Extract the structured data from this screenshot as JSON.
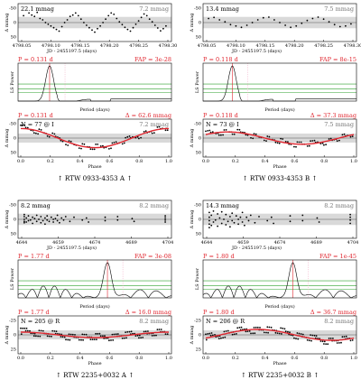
{
  "colors": {
    "red": "#e0262f",
    "gray": "#777777",
    "band": "#d9d9d9",
    "green": "#2ca02c",
    "pink": "#f0a6c0",
    "black": "#000000"
  },
  "chart_data": [
    {
      "id": "A1",
      "type": "scatter",
      "lc": {
        "rms": "22.1 mmag",
        "rms_right": "7.2 mmag",
        "xlabel": "JD - 2455197.5 (days)",
        "ylabel": "Δ mmag",
        "xticks": [
          "4798.05",
          "4798.10",
          "4798.15",
          "4798.20",
          "4798.25",
          "4798.30"
        ],
        "yticks": [
          "-50",
          "0",
          "50"
        ],
        "xlim": [
          4798.03,
          4798.31
        ],
        "ylim": [
          50,
          -50
        ],
        "points": [
          [
            4798.04,
            -20
          ],
          [
            4798.05,
            -28
          ],
          [
            4798.055,
            -22
          ],
          [
            4798.06,
            -18
          ],
          [
            4798.065,
            -30
          ],
          [
            4798.07,
            -12
          ],
          [
            4798.075,
            -8
          ],
          [
            4798.08,
            0
          ],
          [
            4798.085,
            5
          ],
          [
            4798.09,
            10
          ],
          [
            4798.095,
            15
          ],
          [
            4798.1,
            20
          ],
          [
            4798.105,
            25
          ],
          [
            4798.11,
            12
          ],
          [
            4798.115,
            0
          ],
          [
            4798.12,
            -8
          ],
          [
            4798.125,
            -18
          ],
          [
            4798.13,
            -22
          ],
          [
            4798.135,
            -28
          ],
          [
            4798.14,
            -20
          ],
          [
            4798.145,
            -10
          ],
          [
            4798.15,
            0
          ],
          [
            4798.155,
            8
          ],
          [
            4798.16,
            15
          ],
          [
            4798.165,
            22
          ],
          [
            4798.17,
            28
          ],
          [
            4798.175,
            18
          ],
          [
            4798.18,
            10
          ],
          [
            4798.185,
            0
          ],
          [
            4798.19,
            -10
          ],
          [
            4798.195,
            -20
          ],
          [
            4798.2,
            -28
          ],
          [
            4798.205,
            -24
          ],
          [
            4798.21,
            -12
          ],
          [
            4798.215,
            -2
          ],
          [
            4798.22,
            6
          ],
          [
            4798.225,
            14
          ],
          [
            4798.23,
            20
          ],
          [
            4798.235,
            25
          ],
          [
            4798.24,
            15
          ],
          [
            4798.245,
            5
          ],
          [
            4798.25,
            -5
          ],
          [
            4798.255,
            -15
          ],
          [
            4798.26,
            -25
          ],
          [
            4798.265,
            -20
          ],
          [
            4798.27,
            -10
          ],
          [
            4798.275,
            -2
          ],
          [
            4798.28,
            8
          ],
          [
            4798.285,
            16
          ],
          [
            4798.29,
            24
          ],
          [
            4798.295,
            18
          ],
          [
            4798.3,
            10
          ]
        ]
      },
      "ls": {
        "P": "P = 0.131 d",
        "FAP": "FAP = 3e-28",
        "xlabel": "Period (days)",
        "ylabel": "LS Power",
        "peak": 0.131
      },
      "phase": {
        "P": "P = 0.131 d",
        "amp": "Δ = 62.6 mmag",
        "N": "N = 77 @ I",
        "rms_right": "7.2 mmag",
        "xlabel": "Phase",
        "ylabel": "Δ mmag",
        "amplitude": 28,
        "phase0": 0.0,
        "xticks": [
          "0.0",
          "0.2",
          "0.4",
          "0.6",
          "0.8",
          "1.0"
        ],
        "yticks": [
          "-50",
          "0",
          "50"
        ]
      },
      "caption": "↑ RTW 0933-4353 A ↑"
    },
    {
      "id": "B1",
      "type": "scatter",
      "lc": {
        "rms": "13.4 mmag",
        "rms_right": "7.5 mmag",
        "xlabel": "JD - 2455197.5 (days)",
        "ylabel": "Δ mmag",
        "xticks": [
          "4798.05",
          "4798.10",
          "4798.15",
          "4798.20",
          "4798.25",
          "4798.30"
        ],
        "yticks": [
          "-50",
          "0",
          "50"
        ],
        "xlim": [
          4798.03,
          4798.31
        ],
        "ylim": [
          50,
          -50
        ],
        "points": [
          [
            4798.04,
            -12
          ],
          [
            4798.05,
            -15
          ],
          [
            4798.06,
            -8
          ],
          [
            4798.07,
            -2
          ],
          [
            4798.08,
            6
          ],
          [
            4798.09,
            10
          ],
          [
            4798.1,
            14
          ],
          [
            4798.11,
            8
          ],
          [
            4798.12,
            0
          ],
          [
            4798.13,
            -8
          ],
          [
            4798.14,
            -14
          ],
          [
            4798.15,
            -16
          ],
          [
            4798.16,
            -8
          ],
          [
            4798.17,
            0
          ],
          [
            4798.18,
            8
          ],
          [
            4798.19,
            14
          ],
          [
            4798.2,
            10
          ],
          [
            4798.21,
            2
          ],
          [
            4798.22,
            -6
          ],
          [
            4798.23,
            -12
          ],
          [
            4798.24,
            -16
          ],
          [
            4798.25,
            -10
          ],
          [
            4798.26,
            -2
          ],
          [
            4798.27,
            6
          ],
          [
            4798.28,
            12
          ],
          [
            4798.29,
            10
          ],
          [
            4798.3,
            4
          ]
        ]
      },
      "ls": {
        "P": "P = 0.118 d",
        "FAP": "FAP = 8e-15",
        "xlabel": "Period (days)",
        "ylabel": "LS Power",
        "peak": 0.118
      },
      "phase": {
        "P": "P = 0.118 d",
        "amp": "Δ = 37.3 mmag",
        "N": "N = 73 @ I",
        "rms_right": "7.5 mmag",
        "xlabel": "Phase",
        "ylabel": "Δ mmag",
        "amplitude": 18,
        "phase0": 0.15,
        "xticks": [
          "0.0",
          "0.2",
          "0.4",
          "0.6",
          "0.8",
          "1.0"
        ],
        "yticks": [
          "-50",
          "0",
          "50"
        ]
      },
      "caption": "↑ RTW 0933-4353 B ↑"
    },
    {
      "id": "A2",
      "type": "scatter",
      "lc": {
        "rms": "8.2 mmag",
        "rms_right": "8.2 mmag",
        "xlabel": "JD - 2455197.5 (days)",
        "ylabel": "Δ mmag",
        "xticks": [
          "4644",
          "4659",
          "4674",
          "4689",
          "4704"
        ],
        "yticks": [
          "-50",
          "0",
          "50"
        ],
        "xlim": [
          4642,
          4716
        ],
        "ylim": [
          50,
          -50
        ],
        "points": [
          [
            4645,
            -8
          ],
          [
            4645,
            6
          ],
          [
            4645,
            -14
          ],
          [
            4645,
            10
          ],
          [
            4645,
            0
          ],
          [
            4646,
            -4
          ],
          [
            4646,
            8
          ],
          [
            4647,
            -10
          ],
          [
            4647,
            4
          ],
          [
            4648,
            2
          ],
          [
            4649,
            -6
          ],
          [
            4649,
            12
          ],
          [
            4650,
            -2
          ],
          [
            4651,
            6
          ],
          [
            4651,
            -12
          ],
          [
            4652,
            0
          ],
          [
            4653,
            -8
          ],
          [
            4653,
            10
          ],
          [
            4654,
            4
          ],
          [
            4655,
            -4
          ],
          [
            4655,
            14
          ],
          [
            4656,
            -10
          ],
          [
            4656,
            2
          ],
          [
            4657,
            6
          ],
          [
            4658,
            -6
          ],
          [
            4659,
            0
          ],
          [
            4659,
            8
          ],
          [
            4660,
            -2
          ],
          [
            4661,
            4
          ],
          [
            4661,
            -12
          ],
          [
            4662,
            10
          ],
          [
            4663,
            -4
          ],
          [
            4664,
            2
          ],
          [
            4665,
            -8
          ],
          [
            4667,
            6
          ],
          [
            4669,
            -6
          ],
          [
            4673,
            2
          ],
          [
            4675,
            -4
          ],
          [
            4676,
            8
          ],
          [
            4684,
            -6
          ],
          [
            4684,
            4
          ],
          [
            4690,
            2
          ],
          [
            4690,
            -8
          ],
          [
            4697,
            -2
          ],
          [
            4698,
            6
          ],
          [
            4713,
            -4
          ],
          [
            4713,
            8
          ],
          [
            4713,
            -10
          ],
          [
            4713,
            2
          ]
        ]
      },
      "ls": {
        "P": "P = 1.77 d",
        "FAP": "FAP = 3e-08",
        "xlabel": "Period (days)",
        "ylabel": "LS Power",
        "peak": 1.77
      },
      "phase": {
        "P": "P = 1.77 d",
        "amp": "Δ = 16.0 mmag",
        "N": "N = 205 @ R",
        "rms_right": "8.2 mmag",
        "xlabel": "Phase",
        "ylabel": "Δ mmag",
        "amplitude": 8,
        "phase0": 0.0,
        "xticks": [
          "0.0",
          "0.2",
          "0.4",
          "0.6",
          "0.8",
          "1.0"
        ],
        "yticks": [
          "-25",
          "0",
          "25"
        ]
      },
      "caption": "↑ RTW 2235+0032 A ↑"
    },
    {
      "id": "B2",
      "type": "scatter",
      "lc": {
        "rms": "14.3 mmag",
        "rms_right": "8.2 mmag",
        "xlabel": "JD - 2455197.5 (days)",
        "ylabel": "Δ mmag",
        "xticks": [
          "4644",
          "4659",
          "4674",
          "4689",
          "4704"
        ],
        "yticks": [
          "-50",
          "0",
          "50"
        ],
        "xlim": [
          4642,
          4716
        ],
        "ylim": [
          50,
          -50
        ],
        "points": [
          [
            4645,
            -20
          ],
          [
            4645,
            14
          ],
          [
            4645,
            -6
          ],
          [
            4645,
            24
          ],
          [
            4645,
            4
          ],
          [
            4646,
            -12
          ],
          [
            4646,
            18
          ],
          [
            4647,
            -24
          ],
          [
            4647,
            8
          ],
          [
            4648,
            2
          ],
          [
            4649,
            -16
          ],
          [
            4649,
            20
          ],
          [
            4650,
            -4
          ],
          [
            4651,
            12
          ],
          [
            4651,
            -22
          ],
          [
            4652,
            0
          ],
          [
            4653,
            -14
          ],
          [
            4653,
            16
          ],
          [
            4654,
            6
          ],
          [
            4655,
            -8
          ],
          [
            4655,
            22
          ],
          [
            4656,
            -18
          ],
          [
            4656,
            4
          ],
          [
            4657,
            10
          ],
          [
            4658,
            -10
          ],
          [
            4659,
            0
          ],
          [
            4659,
            14
          ],
          [
            4660,
            -6
          ],
          [
            4661,
            8
          ],
          [
            4661,
            -20
          ],
          [
            4662,
            18
          ],
          [
            4663,
            -6
          ],
          [
            4664,
            4
          ],
          [
            4665,
            -12
          ],
          [
            4667,
            10
          ],
          [
            4669,
            -8
          ],
          [
            4673,
            4
          ],
          [
            4675,
            -6
          ],
          [
            4676,
            12
          ],
          [
            4684,
            -10
          ],
          [
            4684,
            6
          ],
          [
            4690,
            4
          ],
          [
            4690,
            -12
          ],
          [
            4697,
            -4
          ],
          [
            4698,
            8
          ],
          [
            4713,
            -6
          ],
          [
            4713,
            12
          ],
          [
            4713,
            -14
          ],
          [
            4713,
            2
          ]
        ]
      },
      "ls": {
        "P": "P = 1.80 d",
        "FAP": "FAP = 1e-45",
        "xlabel": "Period (days)",
        "ylabel": "LS Power",
        "peak": 1.8
      },
      "phase": {
        "P": "P = 1.80 d",
        "amp": "Δ = 36.7 mmag",
        "N": "N = 206 @ R",
        "rms_right": "8.2 mmag",
        "xlabel": "Phase",
        "ylabel": "Δ mmag",
        "amplitude": 16,
        "phase0": 0.35,
        "xticks": [
          "0.0",
          "0.2",
          "0.4",
          "0.6",
          "0.8",
          "1.0"
        ],
        "yticks": [
          "-25",
          "0",
          "25"
        ]
      },
      "caption": "↑ RTW 2235+0032 B ↑"
    }
  ]
}
